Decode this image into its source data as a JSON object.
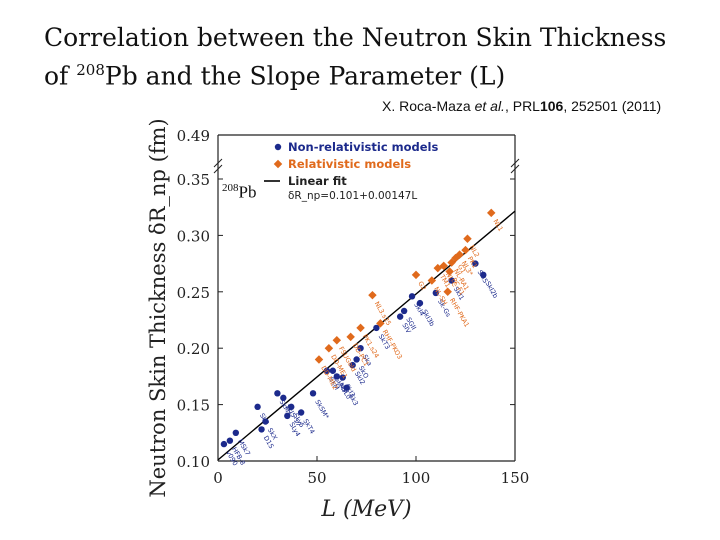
{
  "slide": {
    "title_line1": "Correlation between the Neutron Skin Thickness",
    "title_line2_pre": "of ",
    "title_line2_sup": "208",
    "title_line2_post": "Pb and the Slope Parameter (L)",
    "reference_authors": "X. Roca-Maza ",
    "reference_etal": "et al.",
    "reference_journal": ", PRL",
    "reference_volume": "106",
    "reference_rest": ", 252501 (2011)"
  },
  "chart_data": {
    "type": "scatter",
    "title": "",
    "xlabel": "L (MeV)",
    "ylabel": "Neutron Skin Thickness δR_np (fm)",
    "xlim": [
      0,
      150
    ],
    "ylim": [
      0.1,
      0.35
    ],
    "ytick_break_label": "0.49",
    "xticks": [
      0,
      50,
      100,
      150
    ],
    "yticks": [
      0.1,
      0.15,
      0.2,
      0.25,
      0.3,
      0.35
    ],
    "inset_label_sup": "208",
    "inset_label": "Pb",
    "legend": {
      "placement": "top",
      "entries": [
        "Non-relativistic models",
        "Relativistic models",
        "Linear fit"
      ],
      "fit_equation": "δR_np=0.101+0.00147L"
    },
    "colors": {
      "nonrel": "#1c2a8c",
      "rel": "#e06a1c",
      "fit": "#000000",
      "axis": "#222222"
    },
    "fit": {
      "intercept": 0.101,
      "slope": 0.00147
    },
    "series": [
      {
        "name": "Non-relativistic models",
        "points": [
          {
            "label": "v090",
            "x": 3,
            "y": 0.115
          },
          {
            "label": "HFB-8",
            "x": 6,
            "y": 0.118
          },
          {
            "label": "MSk7",
            "x": 9,
            "y": 0.125
          },
          {
            "label": "SkP",
            "x": 20,
            "y": 0.148
          },
          {
            "label": "SkX",
            "x": 24,
            "y": 0.135
          },
          {
            "label": "D1S",
            "x": 22,
            "y": 0.128
          },
          {
            "label": "SkM*",
            "x": 30,
            "y": 0.16
          },
          {
            "label": "SkI5-17",
            "x": 33,
            "y": 0.156
          },
          {
            "label": "SLy5",
            "x": 37,
            "y": 0.148
          },
          {
            "label": "SLy4",
            "x": 35,
            "y": 0.14
          },
          {
            "label": "SkT4",
            "x": 42,
            "y": 0.143
          },
          {
            "label": "SkSM*",
            "x": 48,
            "y": 0.16
          },
          {
            "label": "SkM",
            "x": 55,
            "y": 0.18
          },
          {
            "label": "SkMP",
            "x": 58,
            "y": 0.18
          },
          {
            "label": "MSL0",
            "x": 60,
            "y": 0.175
          },
          {
            "label": "SkI3",
            "x": 63,
            "y": 0.174
          },
          {
            "label": "Sk3",
            "x": 65,
            "y": 0.165
          },
          {
            "label": "SkI2",
            "x": 68,
            "y": 0.185
          },
          {
            "label": "SkO",
            "x": 70,
            "y": 0.19
          },
          {
            "label": "Ska",
            "x": 72,
            "y": 0.2
          },
          {
            "label": "SkT3",
            "x": 80,
            "y": 0.218
          },
          {
            "label": "SIV",
            "x": 92,
            "y": 0.228
          },
          {
            "label": "SGII",
            "x": 94,
            "y": 0.233
          },
          {
            "label": "SkI4",
            "x": 98,
            "y": 0.246
          },
          {
            "label": "SkI3b",
            "x": 102,
            "y": 0.24
          },
          {
            "label": "Sk-Gs",
            "x": 110,
            "y": 0.249
          },
          {
            "label": "SkI1",
            "x": 118,
            "y": 0.26
          },
          {
            "label": "SkI5",
            "x": 130,
            "y": 0.275
          },
          {
            "label": "SkI2b",
            "x": 134,
            "y": 0.265
          }
        ]
      },
      {
        "name": "Relativistic models",
        "points": [
          {
            "label": "DD-ME2",
            "x": 51,
            "y": 0.19
          },
          {
            "label": "DD-ME1",
            "x": 56,
            "y": 0.2
          },
          {
            "label": "FSUGold",
            "x": 60,
            "y": 0.207
          },
          {
            "label": "DD-PC1",
            "x": 67,
            "y": 0.21
          },
          {
            "label": "PK1.s24",
            "x": 72,
            "y": 0.218
          },
          {
            "label": "RHF-PKO3",
            "x": 82,
            "y": 0.222
          },
          {
            "label": "NL3.s25",
            "x": 78,
            "y": 0.247
          },
          {
            "label": "G2",
            "x": 100,
            "y": 0.265
          },
          {
            "label": "NL-SH",
            "x": 108,
            "y": 0.26
          },
          {
            "label": "TM1",
            "x": 111,
            "y": 0.271
          },
          {
            "label": "NL-C",
            "x": 114,
            "y": 0.273
          },
          {
            "label": "PC-F1",
            "x": 117,
            "y": 0.268
          },
          {
            "label": "NL-RA1",
            "x": 118,
            "y": 0.276
          },
          {
            "label": "G1",
            "x": 120,
            "y": 0.28
          },
          {
            "label": "NL3*",
            "x": 122,
            "y": 0.283
          },
          {
            "label": "NL2",
            "x": 126,
            "y": 0.297
          },
          {
            "label": "NL1",
            "x": 138,
            "y": 0.32
          },
          {
            "label": "PK1",
            "x": 125,
            "y": 0.287
          },
          {
            "label": "RHF-PKA1",
            "x": 116,
            "y": 0.25
          }
        ]
      }
    ]
  }
}
